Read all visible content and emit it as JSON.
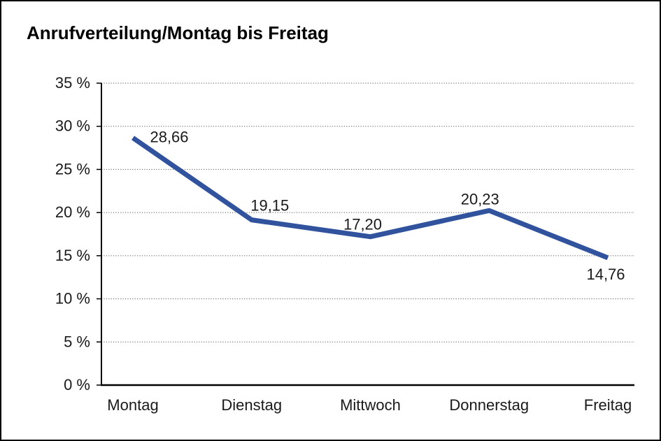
{
  "chart_data": {
    "type": "line",
    "title": "Anrufverteilung/Montag bis Freitag",
    "categories": [
      "Montag",
      "Dienstag",
      "Mittwoch",
      "Donnerstag",
      "Freitag"
    ],
    "series": [
      {
        "name": "Anrufverteilung",
        "values": [
          28.66,
          19.15,
          17.2,
          20.23,
          14.76
        ],
        "value_labels": [
          "28,66",
          "19,15",
          "17,20",
          "20,23",
          "14,76"
        ]
      }
    ],
    "xlabel": "",
    "ylabel": "",
    "ylim": [
      0,
      35
    ],
    "y_tick_step": 5,
    "y_tick_labels": [
      "0 %",
      "5 %",
      "10 %",
      "15 %",
      "20 %",
      "25 %",
      "30 %",
      "35 %"
    ],
    "grid": "horizontal-dotted",
    "legend": "none",
    "line_color": "#31539E",
    "axis_color": "#000000",
    "grid_color": "#595959",
    "text_color": "#1a1a1a"
  }
}
